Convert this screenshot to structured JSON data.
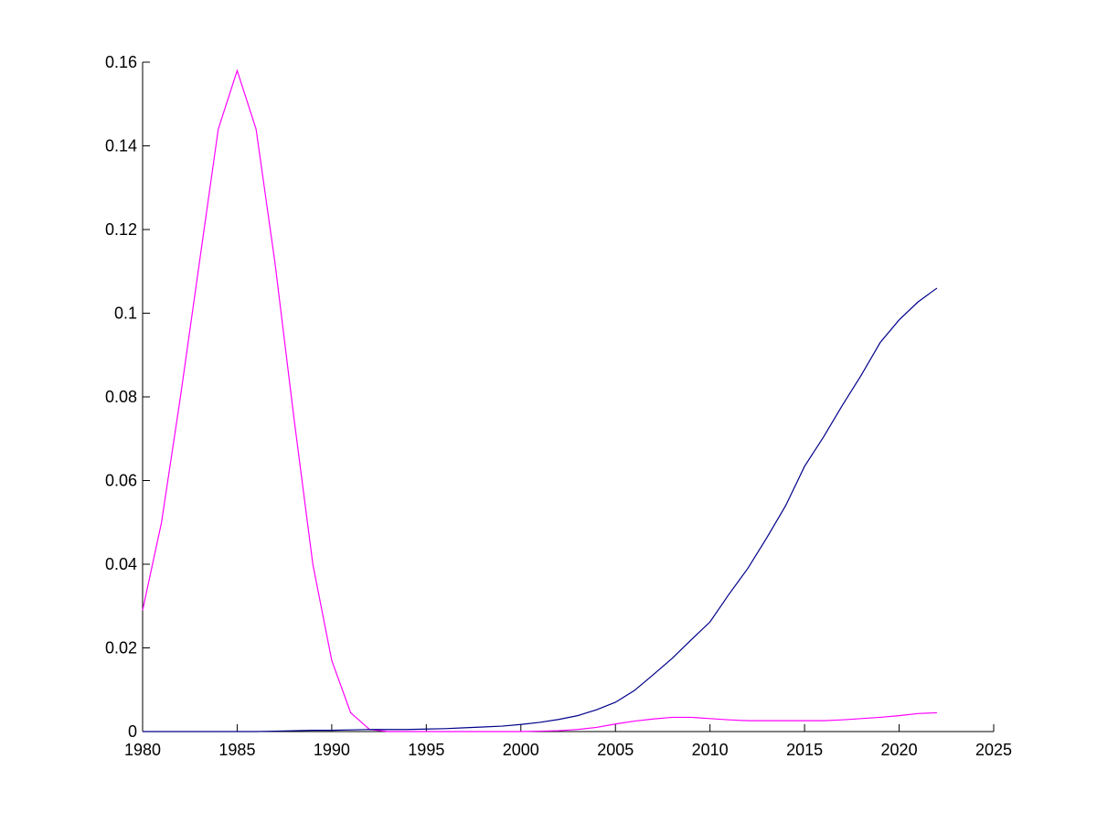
{
  "chart_data": {
    "type": "line",
    "x": [
      1980,
      1981,
      1982,
      1983,
      1984,
      1985,
      1986,
      1987,
      1988,
      1989,
      1990,
      1991,
      1992,
      1993,
      1994,
      1995,
      1996,
      1997,
      1998,
      1999,
      2000,
      2001,
      2002,
      2003,
      2004,
      2005,
      2006,
      2007,
      2008,
      2009,
      2010,
      2011,
      2012,
      2013,
      2014,
      2015,
      2016,
      2017,
      2018,
      2019,
      2020,
      2021,
      2022
    ],
    "series": [
      {
        "color": "#ff00ff",
        "values": [
          0.029,
          0.05,
          0.08,
          0.112,
          0.144,
          0.158,
          0.144,
          0.112,
          0.075,
          0.04,
          0.017,
          0.0045,
          0.0005,
          0,
          0,
          0,
          0,
          0,
          0,
          0,
          0,
          0.0001,
          0.0002,
          0.0005,
          0.001,
          0.0018,
          0.0025,
          0.003,
          0.0034,
          0.0034,
          0.0031,
          0.0028,
          0.0026,
          0.0026,
          0.0026,
          0.0026,
          0.0026,
          0.0028,
          0.0031,
          0.0034,
          0.0038,
          0.0043,
          0.0045
        ]
      },
      {
        "color": "#00008b",
        "values": [
          0,
          0,
          0,
          0,
          0,
          0,
          0,
          0.0001,
          0.0002,
          0.0003,
          0.0003,
          0.0004,
          0.0005,
          0.0005,
          0.0005,
          0.0006,
          0.0007,
          0.0009,
          0.0011,
          0.0013,
          0.0017,
          0.0022,
          0.0029,
          0.0038,
          0.0052,
          0.007,
          0.0098,
          0.0136,
          0.0175,
          0.0219,
          0.0262,
          0.0328,
          0.039,
          0.0463,
          0.054,
          0.0634,
          0.0704,
          0.078,
          0.0852,
          0.093,
          0.0984,
          0.1027,
          0.106
        ]
      }
    ],
    "xlim": [
      1980,
      2025
    ],
    "xticks": [
      1980,
      1985,
      1990,
      1995,
      2000,
      2005,
      2010,
      2015,
      2020,
      2025
    ],
    "ylim": [
      0,
      0.16
    ],
    "yticks": [
      0,
      0.02,
      0.04,
      0.06,
      0.08,
      0.1,
      0.12,
      0.14,
      0.16
    ]
  }
}
